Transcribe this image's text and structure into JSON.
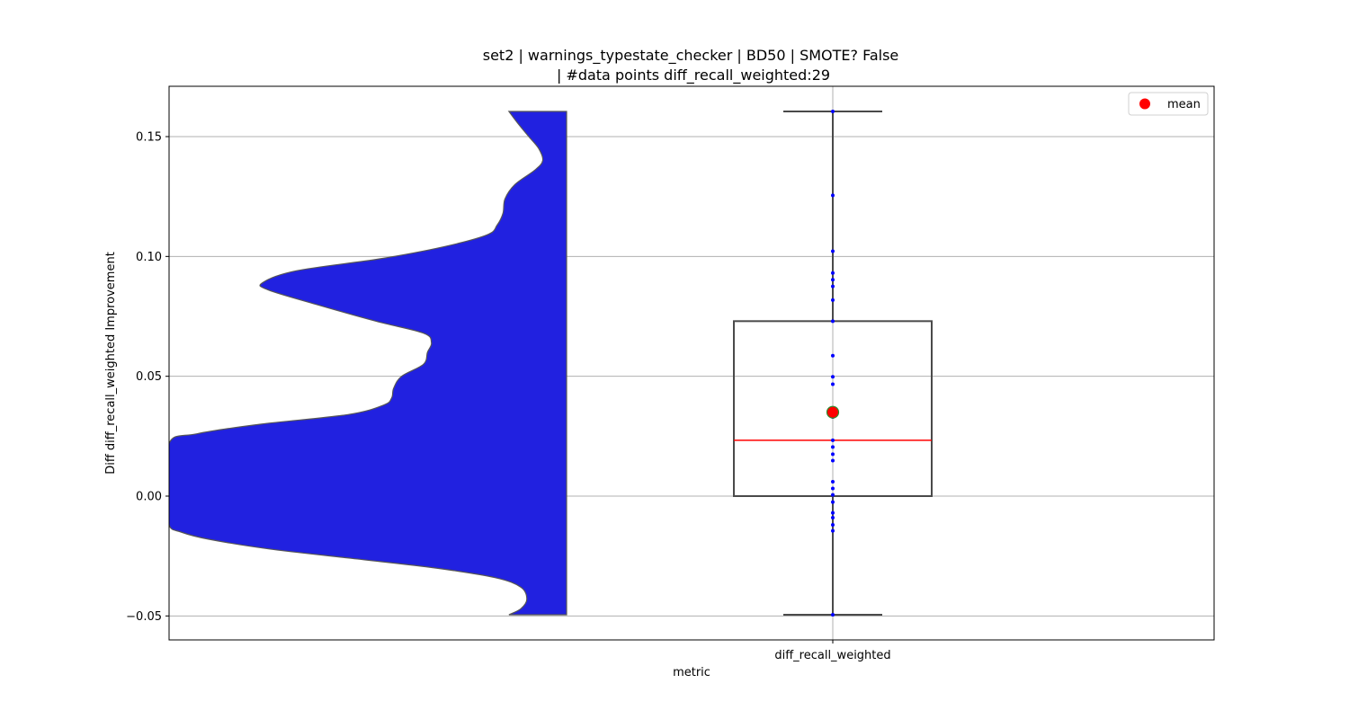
{
  "chart_data": {
    "type": "violin-box",
    "title_line1": "set2 | warnings_typestate_checker | BD50 | SMOTE? False",
    "title_line2": "| #data points diff_recall_weighted:29",
    "xlabel": "metric",
    "ylabel": "Diff diff_recall_weighted Improvement",
    "categories": [
      "diff_recall_weighted"
    ],
    "ylim": [
      -0.06,
      0.171
    ],
    "yticks": [
      {
        "value": -0.05,
        "label": "−0.05"
      },
      {
        "value": 0.0,
        "label": "0.00"
      },
      {
        "value": 0.05,
        "label": "0.05"
      },
      {
        "value": 0.1,
        "label": "0.10"
      },
      {
        "value": 0.15,
        "label": "0.15"
      }
    ],
    "grid": true,
    "legend": {
      "position": "top-right",
      "entries": [
        {
          "label": "mean",
          "color": "#ff0000"
        }
      ]
    },
    "box": {
      "whisker_low": -0.0495,
      "q1": 0.0,
      "median": 0.0233,
      "q3": 0.073,
      "whisker_high": 0.1605,
      "mean": 0.035
    },
    "points": [
      0.1605,
      0.1255,
      0.1022,
      0.0931,
      0.0903,
      0.0875,
      0.0818,
      0.073,
      0.0586,
      0.0498,
      0.0467,
      0.033,
      0.0233,
      0.0205,
      0.0175,
      0.0148,
      0.006,
      0.0032,
      0.0005,
      -0.0025,
      -0.007,
      -0.009,
      -0.012,
      -0.0145,
      -0.0495
    ],
    "violin_density": [
      {
        "y": -0.0495,
        "d": 0.145
      },
      {
        "y": -0.047,
        "d": 0.115
      },
      {
        "y": -0.043,
        "d": 0.1
      },
      {
        "y": -0.038,
        "d": 0.115
      },
      {
        "y": -0.034,
        "d": 0.18
      },
      {
        "y": -0.03,
        "d": 0.33
      },
      {
        "y": -0.026,
        "d": 0.54
      },
      {
        "y": -0.022,
        "d": 0.75
      },
      {
        "y": -0.018,
        "d": 0.9
      },
      {
        "y": -0.015,
        "d": 0.97
      },
      {
        "y": -0.012,
        "d": 1.0
      },
      {
        "y": 0.0,
        "d": 1.0
      },
      {
        "y": 0.022,
        "d": 1.0
      },
      {
        "y": 0.026,
        "d": 0.93
      },
      {
        "y": 0.03,
        "d": 0.77
      },
      {
        "y": 0.034,
        "d": 0.55
      },
      {
        "y": 0.038,
        "d": 0.46
      },
      {
        "y": 0.041,
        "d": 0.44
      },
      {
        "y": 0.045,
        "d": 0.435
      },
      {
        "y": 0.05,
        "d": 0.415
      },
      {
        "y": 0.055,
        "d": 0.36
      },
      {
        "y": 0.06,
        "d": 0.35
      },
      {
        "y": 0.064,
        "d": 0.34
      },
      {
        "y": 0.068,
        "d": 0.36
      },
      {
        "y": 0.073,
        "d": 0.48
      },
      {
        "y": 0.08,
        "d": 0.63
      },
      {
        "y": 0.086,
        "d": 0.75
      },
      {
        "y": 0.089,
        "d": 0.765
      },
      {
        "y": 0.094,
        "d": 0.68
      },
      {
        "y": 0.099,
        "d": 0.47
      },
      {
        "y": 0.104,
        "d": 0.31
      },
      {
        "y": 0.109,
        "d": 0.2
      },
      {
        "y": 0.113,
        "d": 0.175
      },
      {
        "y": 0.118,
        "d": 0.16
      },
      {
        "y": 0.124,
        "d": 0.155
      },
      {
        "y": 0.13,
        "d": 0.13
      },
      {
        "y": 0.136,
        "d": 0.08
      },
      {
        "y": 0.14,
        "d": 0.06
      },
      {
        "y": 0.145,
        "d": 0.07
      },
      {
        "y": 0.15,
        "d": 0.095
      },
      {
        "y": 0.155,
        "d": 0.12
      },
      {
        "y": 0.1605,
        "d": 0.145
      }
    ],
    "colors": {
      "violin_fill": "#2121e0",
      "violin_edge": "#555555",
      "box_edge": "#4a4a4a",
      "median": "#ff0000",
      "mean_fill": "#ff0000",
      "mean_edge": "#2e8b2e",
      "points": "#0000ff",
      "grid": "#b0b0b0"
    }
  }
}
